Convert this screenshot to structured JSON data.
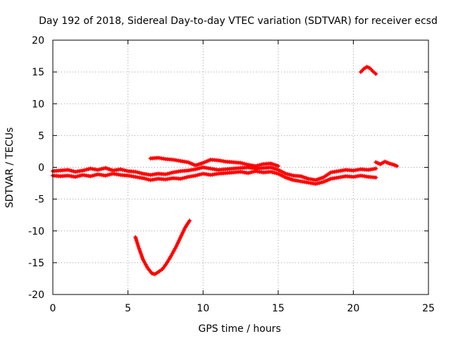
{
  "chart_data": {
    "type": "scatter",
    "title": "Day 192 of 2018, Sidereal Day-to-day VTEC variation (SDTVAR) for receiver ecsd",
    "xlabel": "GPS time / hours",
    "ylabel": "SDTVAR / TECUs",
    "xlim": [
      0,
      25
    ],
    "ylim": [
      -20,
      20
    ],
    "xticks": [
      0,
      5,
      10,
      15,
      20,
      25
    ],
    "yticks": [
      -20,
      -15,
      -10,
      -5,
      0,
      5,
      10,
      15,
      20
    ],
    "xtick_labels": [
      "0",
      "5",
      "10",
      "15",
      "20",
      "25"
    ],
    "ytick_labels": [
      "-20",
      "-15",
      "-10",
      "-5",
      "0",
      "5",
      "10",
      "15",
      "20"
    ],
    "grid": true,
    "marker_color": "#ff0000",
    "series": [
      {
        "name": "main band upper",
        "x": [
          0,
          0.5,
          1,
          1.5,
          2,
          2.5,
          3,
          3.5,
          4,
          4.5,
          5,
          5.5,
          6,
          6.5,
          7,
          7.5,
          8,
          8.5,
          9,
          9.5,
          10,
          10.5,
          11,
          11.5,
          12,
          12.5,
          13,
          13.5,
          14,
          14.5,
          15,
          15.5,
          16,
          16.5,
          17,
          17.5,
          18,
          18.5,
          19,
          19.5,
          20,
          20.5,
          21,
          21.5
        ],
        "y": [
          -0.6,
          -0.5,
          -0.4,
          -0.7,
          -0.5,
          -0.2,
          -0.4,
          -0.1,
          -0.5,
          -0.3,
          -0.6,
          -0.7,
          -1.0,
          -1.2,
          -1.0,
          -1.1,
          -0.8,
          -0.6,
          -0.5,
          -0.3,
          0.0,
          -0.2,
          -0.4,
          -0.3,
          -0.2,
          -0.1,
          0.0,
          -0.2,
          -0.1,
          0.0,
          -0.4,
          -1.0,
          -1.3,
          -1.4,
          -1.8,
          -2.0,
          -1.6,
          -0.8,
          -0.6,
          -0.4,
          -0.5,
          -0.3,
          -0.4,
          -0.2
        ]
      },
      {
        "name": "main band lower",
        "x": [
          0,
          0.5,
          1,
          1.5,
          2,
          2.5,
          3,
          3.5,
          4,
          4.5,
          5,
          5.5,
          6,
          6.5,
          7,
          7.5,
          8,
          8.5,
          9,
          9.5,
          10,
          10.5,
          11,
          11.5,
          12,
          12.5,
          13,
          13.5,
          14,
          14.5,
          15,
          15.5,
          16,
          16.5,
          17,
          17.5,
          18,
          18.5,
          19,
          19.5,
          20,
          20.5,
          21,
          21.5
        ],
        "y": [
          -1.3,
          -1.4,
          -1.3,
          -1.5,
          -1.2,
          -1.4,
          -1.1,
          -1.3,
          -1.0,
          -1.2,
          -1.3,
          -1.5,
          -1.7,
          -2.0,
          -1.8,
          -1.9,
          -1.7,
          -1.8,
          -1.5,
          -1.3,
          -1.0,
          -1.2,
          -1.0,
          -0.9,
          -0.8,
          -0.7,
          -0.9,
          -0.6,
          -0.8,
          -0.7,
          -1.0,
          -1.6,
          -2.0,
          -2.2,
          -2.4,
          -2.6,
          -2.3,
          -1.8,
          -1.6,
          -1.4,
          -1.5,
          -1.3,
          -1.5,
          -1.6
        ]
      },
      {
        "name": "upper arc",
        "x": [
          6.5,
          7,
          7.5,
          8,
          8.5,
          9,
          9.5,
          10,
          10.5,
          11,
          11.5,
          12,
          12.5,
          13,
          13.5,
          14,
          14.5,
          15
        ],
        "y": [
          1.4,
          1.5,
          1.3,
          1.2,
          1.0,
          0.8,
          0.3,
          0.7,
          1.2,
          1.1,
          0.9,
          0.8,
          0.7,
          0.4,
          0.2,
          0.5,
          0.6,
          0.2
        ]
      },
      {
        "name": "late segment",
        "x": [
          21.5,
          21.8,
          22.1,
          22.4,
          22.7,
          22.9
        ],
        "y": [
          0.8,
          0.5,
          0.9,
          0.6,
          0.4,
          0.2
        ]
      },
      {
        "name": "arc near 15",
        "x": [
          20.5,
          20.7,
          20.9,
          21.1,
          21.3,
          21.5
        ],
        "y": [
          15.0,
          15.5,
          15.8,
          15.6,
          15.1,
          14.7
        ]
      },
      {
        "name": "V dip",
        "x": [
          5.5,
          5.7,
          6.0,
          6.3,
          6.6,
          6.8,
          7.0,
          7.3,
          7.6,
          7.9,
          8.2,
          8.5,
          8.8,
          9.1
        ],
        "y": [
          -11.0,
          -12.5,
          -14.5,
          -15.8,
          -16.7,
          -16.8,
          -16.5,
          -16.0,
          -15.0,
          -13.8,
          -12.5,
          -11.0,
          -9.5,
          -8.4
        ]
      }
    ]
  }
}
